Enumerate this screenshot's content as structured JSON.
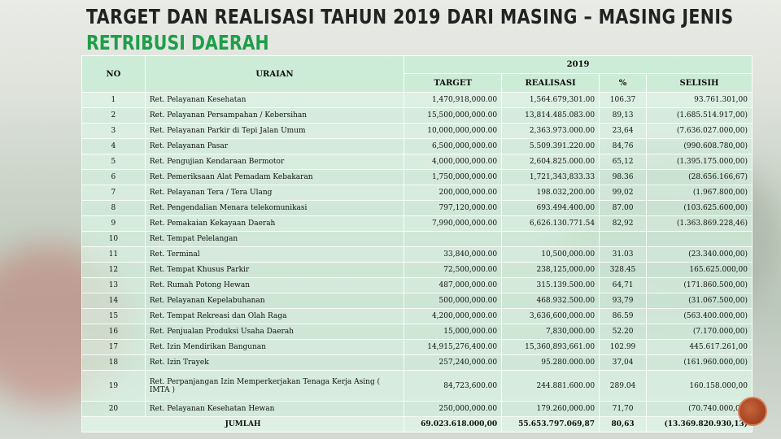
{
  "title": "TARGET DAN REALISASI TAHUN 2019 DARI MASING – MASING JENIS",
  "subtitle": "RETRIBUSI DAERAH",
  "colors": {
    "subtitle": "#1f9e4a",
    "header_bg": "#c8eed6"
  },
  "table": {
    "headers": {
      "no": "NO",
      "uraian": "URAIAN",
      "year": "2019",
      "target": "TARGET",
      "realisasi": "REALISASI",
      "percent": "%",
      "selisih": "SELISIH"
    },
    "rows": [
      {
        "no": "1",
        "uraian": "Ret. Pelayanan Kesehatan",
        "target": "1,470,918,000.00",
        "realisasi": "1,564.679,301.00",
        "percent": "106.37",
        "selisih": "93.761.301,00"
      },
      {
        "no": "2",
        "uraian": "Ret. Pelayanan Persampahan / Kebersihan",
        "target": "15,500,000,000.00",
        "realisasi": "13,814.485.083.00",
        "percent": "89,13",
        "selisih": "(1.685.514.917,00)"
      },
      {
        "no": "3",
        "uraian": "Ret. Pelayanan Parkir di Tepi Jalan Umum",
        "target": "10,000,000,000.00",
        "realisasi": "2,363.973.000.00",
        "percent": "23,64",
        "selisih": "(7.636.027.000,00)"
      },
      {
        "no": "4",
        "uraian": "Ret. Pelayanan Pasar",
        "target": "6,500,000,000.00",
        "realisasi": "5.509.391.220.00",
        "percent": "84,76",
        "selisih": "(990.608.780,00)"
      },
      {
        "no": "5",
        "uraian": "Ret. Pengujian Kendaraan Bermotor",
        "target": "4,000,000,000.00",
        "realisasi": "2,604.825.000.00",
        "percent": "65,12",
        "selisih": "(1.395.175.000,00)"
      },
      {
        "no": "6",
        "uraian": "Ret. Pemeriksaan Alat Pemadam Kebakaran",
        "target": "1,750,000,000.00",
        "realisasi": "1,721,343,833.33",
        "percent": "98.36",
        "selisih": "(28.656.166,67)"
      },
      {
        "no": "7",
        "uraian": "Ret. Pelayanan Tera / Tera Ulang",
        "target": "200,000,000.00",
        "realisasi": "198.032,200.00",
        "percent": "99,02",
        "selisih": "(1.967.800,00)"
      },
      {
        "no": "8",
        "uraian": "Ret. Pengendalian Menara telekomunikasi",
        "target": "797,120,000.00",
        "realisasi": "693.494.400.00",
        "percent": "87.00",
        "selisih": "(103.625.600,00)"
      },
      {
        "no": "9",
        "uraian": "Ret. Pemakaian Kekayaan Daerah",
        "target": "7,990,000,000.00",
        "realisasi": "6,626.130.771.54",
        "percent": "82,92",
        "selisih": "(1.363.869.228,46)"
      },
      {
        "no": "10",
        "uraian": "Ret. Tempat Pelelangan",
        "target": "",
        "realisasi": "",
        "percent": "",
        "selisih": ""
      },
      {
        "no": "11",
        "uraian": "Ret. Terminal",
        "target": "33,840,000.00",
        "realisasi": "10,500,000.00",
        "percent": "31.03",
        "selisih": "(23.340.000,00)"
      },
      {
        "no": "12",
        "uraian": "Ret. Tempat Khusus Parkir",
        "target": "72,500,000.00",
        "realisasi": "238,125,000.00",
        "percent": "328.45",
        "selisih": "165.625.000,00"
      },
      {
        "no": "13",
        "uraian": "Ret. Rumah Potong Hewan",
        "target": "487,000,000.00",
        "realisasi": "315.139.500.00",
        "percent": "64,71",
        "selisih": "(171.860.500,00)"
      },
      {
        "no": "14",
        "uraian": "Ret. Pelayanan Kepelabuhanan",
        "target": "500,000,000.00",
        "realisasi": "468.932.500.00",
        "percent": "93,79",
        "selisih": "(31.067.500,00)"
      },
      {
        "no": "15",
        "uraian": "Ret. Tempat Rekreasi dan Olah Raga",
        "target": "4,200,000,000.00",
        "realisasi": "3,636,600,000.00",
        "percent": "86.59",
        "selisih": "(563.400.000,00)"
      },
      {
        "no": "16",
        "uraian": "Ret. Penjualan Produksi Usaha Daerah",
        "target": "15,000,000.00",
        "realisasi": "7,830,000.00",
        "percent": "52.20",
        "selisih": "(7.170.000,00)"
      },
      {
        "no": "17",
        "uraian": "Ret. Izin Mendirikan Bangunan",
        "target": "14,915,276,400.00",
        "realisasi": "15,360,893,661.00",
        "percent": "102.99",
        "selisih": "445.617.261,00"
      },
      {
        "no": "18",
        "uraian": "Ret. Izin Trayek",
        "target": "257,240,000.00",
        "realisasi": "95.280.000.00",
        "percent": "37,04",
        "selisih": "(161.960.000,00)"
      },
      {
        "no": "19",
        "uraian": "Ret. Perpanjangan Izin Memperkerjakan Tenaga Kerja Asing ( IMTA )",
        "target": "84,723,600.00",
        "realisasi": "244.881.600.00",
        "percent": "289.04",
        "selisih": "160.158.000,00"
      },
      {
        "no": "20",
        "uraian": "Ret. Pelayanan Kesehatan Hewan",
        "target": "250,000,000.00",
        "realisasi": "179.260,000.00",
        "percent": "71,70",
        "selisih": "(70.740.000,00)"
      }
    ],
    "total": {
      "label": "JUMLAH",
      "target": "69.023.618.000,00",
      "realisasi": "55.653.797.069,87",
      "percent": "80,63",
      "selisih": "(13.369.820.930,13)"
    }
  }
}
